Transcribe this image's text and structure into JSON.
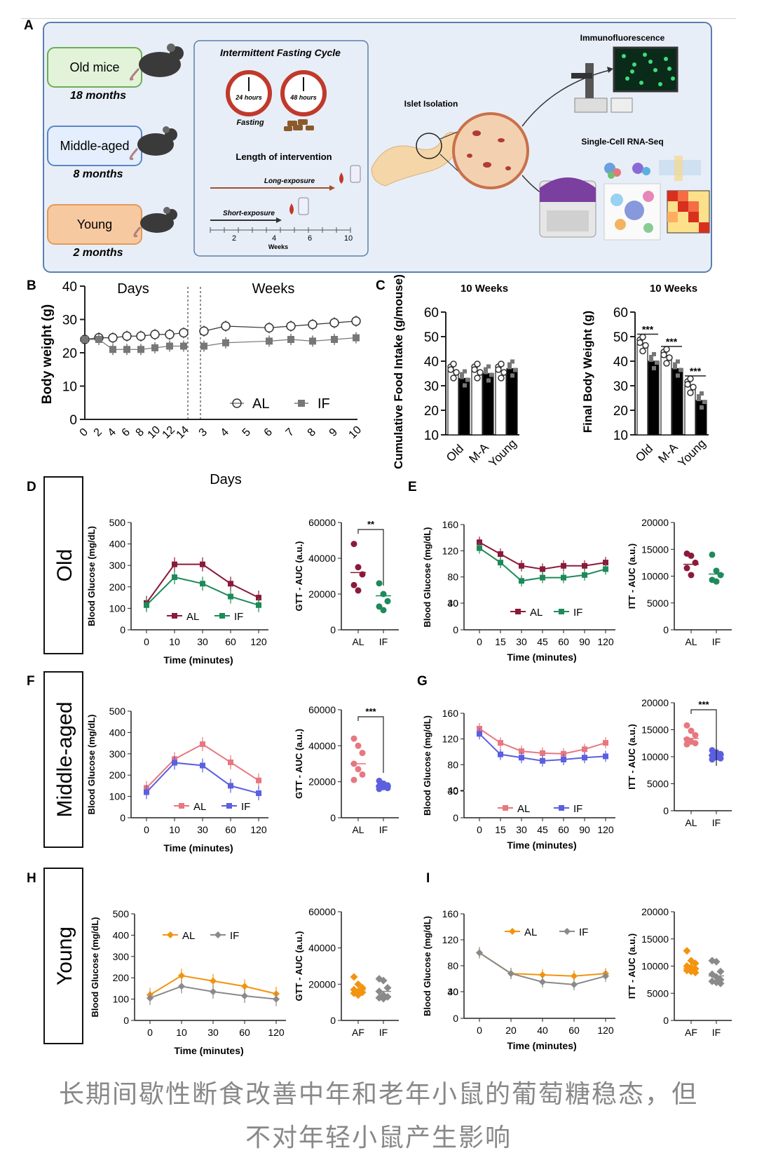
{
  "figure": {
    "panel_letters": {
      "A": "A",
      "B": "B",
      "C": "C",
      "D": "D",
      "E": "E",
      "F": "F",
      "G": "G",
      "H": "H",
      "I": "I"
    },
    "row_labels": {
      "old": "Old",
      "middle": "Middle-aged",
      "young": "Young"
    },
    "schematic": {
      "groups": [
        {
          "name": "Old mice",
          "age": "18 months"
        },
        {
          "name": "Middle-aged",
          "age": "8 months"
        },
        {
          "name": "Young",
          "age": "2 months"
        }
      ],
      "if_title": "Intermittent Fasting Cycle",
      "clock1": "24 hours",
      "clock2": "48 hours",
      "fasting": "Fasting",
      "length_title": "Length of intervention",
      "long": "Long-exposure",
      "short": "Short-exposure",
      "weeks_ticks": [
        "2",
        "4",
        "6",
        "10"
      ],
      "weeks_label": "Weeks",
      "islet": "Islet Isolation",
      "immuno": "Immunofluorescence",
      "scrna": "Single-Cell RNA-Seq"
    },
    "colors": {
      "old_al": "#8b1a3a",
      "old_if": "#1e8a5a",
      "mid_al": "#e8777f",
      "mid_if": "#5b5fe0",
      "young_al": "#f2940f",
      "young_if": "#8a8a8a",
      "frame": "#5a7fb0",
      "panel_bg": "#e8eef7"
    }
  },
  "chart_data": [
    {
      "id": "B",
      "type": "line",
      "title_left": "Days",
      "title_right": "Weeks",
      "ylabel": "Body weight (g)",
      "xlabel": "Days",
      "ylim": [
        0,
        40
      ],
      "y_ticks": [
        "0",
        "10",
        "20",
        "30",
        "40"
      ],
      "x_days": [
        "0",
        "2",
        "4",
        "6",
        "8",
        "10",
        "12",
        "14"
      ],
      "x_weeks": [
        "3",
        "4",
        "5",
        "6",
        "7",
        "8",
        "9",
        "10"
      ],
      "series": [
        {
          "name": "AL",
          "days": [
            24,
            24.5,
            24.5,
            25,
            25,
            25.5,
            25.5,
            26
          ],
          "weeks": [
            26.5,
            28,
            null,
            27.5,
            28,
            28.5,
            29,
            29.5
          ]
        },
        {
          "name": "IF",
          "days": [
            24,
            24,
            21,
            21,
            21,
            21.5,
            22,
            22
          ],
          "weeks": [
            22,
            23,
            null,
            23.5,
            24,
            23.5,
            24,
            24.5
          ]
        }
      ]
    },
    {
      "id": "C1",
      "type": "bar",
      "title": "10 Weeks",
      "ylabel": "Cumulative Food Intake (g/mouse)",
      "ylim": [
        10,
        60
      ],
      "y_ticks": [
        "10",
        "20",
        "30",
        "40",
        "50",
        "60"
      ],
      "categories": [
        "Old",
        "M-A",
        "Young"
      ],
      "series": [
        {
          "name": "AL",
          "values": [
            36,
            36,
            36
          ]
        },
        {
          "name": "IF",
          "values": [
            33,
            35,
            37
          ]
        }
      ]
    },
    {
      "id": "C2",
      "type": "bar",
      "title": "10 Weeks",
      "ylabel": "Final Body Weight (g)",
      "ylim": [
        10,
        60
      ],
      "y_ticks": [
        "10",
        "20",
        "30",
        "40",
        "50",
        "60"
      ],
      "categories": [
        "Old",
        "M-A",
        "Young"
      ],
      "significance": [
        "***",
        "***",
        "***"
      ],
      "series": [
        {
          "name": "AL",
          "values": [
            47,
            42,
            30
          ]
        },
        {
          "name": "IF",
          "values": [
            40,
            37,
            24
          ]
        }
      ]
    },
    {
      "id": "D",
      "type": "line",
      "ylabel": "Blood Glucose (mg/dL)",
      "xlabel": "Time (minutes)",
      "x": [
        "0",
        "10",
        "30",
        "60",
        "120"
      ],
      "y_ticks": [
        "0",
        "100",
        "200",
        "300",
        "400",
        "500"
      ],
      "ylim": [
        0,
        500
      ],
      "series": [
        {
          "name": "AL",
          "values": [
            125,
            305,
            305,
            215,
            150
          ]
        },
        {
          "name": "IF",
          "values": [
            115,
            245,
            215,
            155,
            115
          ]
        }
      ]
    },
    {
      "id": "D2",
      "type": "scatter",
      "ylabel": "GTT - AUC (a.u.)",
      "categories": [
        "AL",
        "IF"
      ],
      "y_ticks": [
        "0",
        "20000",
        "40000",
        "60000"
      ],
      "ylim": [
        0,
        60000
      ],
      "significance": "**",
      "series": [
        {
          "name": "AL",
          "values": [
            48000,
            35000,
            31000,
            25000,
            22000
          ],
          "mean": 32000
        },
        {
          "name": "IF",
          "values": [
            26000,
            20000,
            16000,
            13000,
            11000
          ],
          "mean": 19000
        }
      ]
    },
    {
      "id": "E",
      "type": "line",
      "ylabel": "Blood Glucose (mg/dL)",
      "xlabel": "Time (minutes)",
      "x": [
        "0",
        "15",
        "30",
        "45",
        "60",
        "90",
        "120"
      ],
      "y_ticks_top": [
        "40",
        "80",
        "120",
        "160"
      ],
      "y_ticks_bottom": [
        "0",
        "30"
      ],
      "ylim": [
        40,
        160
      ],
      "series": [
        {
          "name": "AL",
          "values": [
            133,
            115,
            97,
            92,
            97,
            97,
            102
          ]
        },
        {
          "name": "IF",
          "values": [
            124,
            102,
            74,
            79,
            79,
            83,
            92
          ]
        }
      ]
    },
    {
      "id": "E2",
      "type": "scatter",
      "ylabel": "ITT - AUC (a.u.)",
      "categories": [
        "AL",
        "IF"
      ],
      "y_ticks": [
        "0",
        "5000",
        "10000",
        "15000",
        "20000"
      ],
      "ylim": [
        0,
        20000
      ],
      "series": [
        {
          "name": "AL",
          "values": [
            14200,
            13800,
            12500,
            11500,
            10200
          ],
          "mean": 12200
        },
        {
          "name": "IF",
          "values": [
            14000,
            11000,
            10200,
            9300,
            9000
          ],
          "mean": 10400
        }
      ]
    },
    {
      "id": "F",
      "type": "line",
      "ylabel": "Blood Glucose (mg/dL)",
      "xlabel": "Time (minutes)",
      "x": [
        "0",
        "10",
        "30",
        "60",
        "120"
      ],
      "y_ticks": [
        "0",
        "100",
        "200",
        "300",
        "400",
        "500"
      ],
      "ylim": [
        0,
        500
      ],
      "series": [
        {
          "name": "AL",
          "values": [
            140,
            275,
            345,
            260,
            175
          ]
        },
        {
          "name": "IF",
          "values": [
            120,
            258,
            245,
            150,
            115
          ]
        }
      ]
    },
    {
      "id": "F2",
      "type": "scatter",
      "ylabel": "GTT - AUC (a.u.)",
      "categories": [
        "AL",
        "IF"
      ],
      "y_ticks": [
        "0",
        "20000",
        "40000",
        "60000"
      ],
      "ylim": [
        0,
        60000
      ],
      "significance": "***",
      "series": [
        {
          "name": "AL",
          "values": [
            44000,
            40000,
            36000,
            30000,
            27000,
            24000,
            21000
          ],
          "mean": 30000
        },
        {
          "name": "IF",
          "values": [
            20500,
            19000,
            18000,
            17500,
            17000,
            16500,
            16000
          ],
          "mean": 17500
        }
      ]
    },
    {
      "id": "G",
      "type": "line",
      "ylabel": "Blood Glucose (mg/dL)",
      "xlabel": "Time (minutes)",
      "x": [
        "0",
        "15",
        "30",
        "45",
        "60",
        "90",
        "120"
      ],
      "y_ticks_top": [
        "40",
        "80",
        "120",
        "160"
      ],
      "y_ticks_bottom": [
        "0",
        "30"
      ],
      "ylim": [
        40,
        160
      ],
      "series": [
        {
          "name": "AL",
          "values": [
            136,
            114,
            101,
            98,
            97,
            104,
            114
          ]
        },
        {
          "name": "IF",
          "values": [
            128,
            96,
            91,
            86,
            88,
            91,
            93
          ]
        }
      ]
    },
    {
      "id": "G2",
      "type": "scatter",
      "ylabel": "ITT - AUC (a.u.)",
      "categories": [
        "AL",
        "IF"
      ],
      "y_ticks": [
        "0",
        "5000",
        "10000",
        "15000",
        "20000"
      ],
      "ylim": [
        0,
        20000
      ],
      "significance": "***",
      "series": [
        {
          "name": "AL",
          "values": [
            15800,
            14800,
            14000,
            13200,
            12800,
            12500,
            12300
          ],
          "mean": 13400
        },
        {
          "name": "IF",
          "values": [
            11200,
            10800,
            10500,
            10200,
            9900,
            9700,
            9500
          ],
          "mean": 10300
        }
      ]
    },
    {
      "id": "H",
      "type": "line",
      "ylabel": "Blood Glucose (mg/dL)",
      "xlabel": "Time (minutes)",
      "x": [
        "0",
        "10",
        "30",
        "60",
        "120"
      ],
      "y_ticks": [
        "0",
        "100",
        "200",
        "300",
        "400",
        "500"
      ],
      "ylim": [
        0,
        500
      ],
      "series": [
        {
          "name": "AL",
          "values": [
            120,
            210,
            185,
            160,
            125
          ]
        },
        {
          "name": "IF",
          "values": [
            105,
            160,
            135,
            115,
            100
          ]
        }
      ]
    },
    {
      "id": "H2",
      "type": "scatter",
      "ylabel": "GTT - AUC (a.u.)",
      "categories": [
        "AF",
        "IF"
      ],
      "y_ticks": [
        "0",
        "20000",
        "40000",
        "60000"
      ],
      "ylim": [
        0,
        60000
      ],
      "series": [
        {
          "name": "AF",
          "values": [
            24000,
            20000,
            18000,
            17000,
            16000,
            15500,
            15000,
            14000
          ],
          "mean": 17000
        },
        {
          "name": "IF",
          "values": [
            23000,
            22000,
            18000,
            16000,
            14000,
            13000,
            12500,
            12000
          ],
          "mean": 16000
        }
      ]
    },
    {
      "id": "I",
      "type": "line",
      "ylabel": "Blood Glucose (mg/dL)",
      "xlabel": "Time (minutes)",
      "x": [
        "0",
        "20",
        "40",
        "60",
        "120"
      ],
      "y_ticks_top": [
        "40",
        "80",
        "120",
        "160"
      ],
      "y_ticks_bottom": [
        "0",
        "30"
      ],
      "ylim": [
        40,
        160
      ],
      "series": [
        {
          "name": "AL",
          "values": [
            100,
            68,
            66,
            64,
            68
          ]
        },
        {
          "name": "IF",
          "values": [
            100,
            68,
            55,
            51,
            64
          ]
        }
      ]
    },
    {
      "id": "I2",
      "type": "scatter",
      "ylabel": "ITT - AUC (a.u.)",
      "categories": [
        "AF",
        "IF"
      ],
      "y_ticks": [
        "0",
        "5000",
        "10000",
        "15000",
        "20000"
      ],
      "ylim": [
        0,
        20000
      ],
      "series": [
        {
          "name": "AF",
          "values": [
            12800,
            11000,
            10500,
            10000,
            9800,
            9500,
            9200,
            9000,
            8800
          ],
          "mean": 9600
        },
        {
          "name": "IF",
          "values": [
            11000,
            10800,
            9000,
            8500,
            8000,
            7500,
            7200,
            7000,
            6800
          ],
          "mean": 8200
        }
      ]
    }
  ],
  "caption": {
    "line1": "长期间歇性断食改善中年和老年小鼠的葡萄糖稳态，但",
    "line2": "不对年轻小鼠产生影响"
  }
}
